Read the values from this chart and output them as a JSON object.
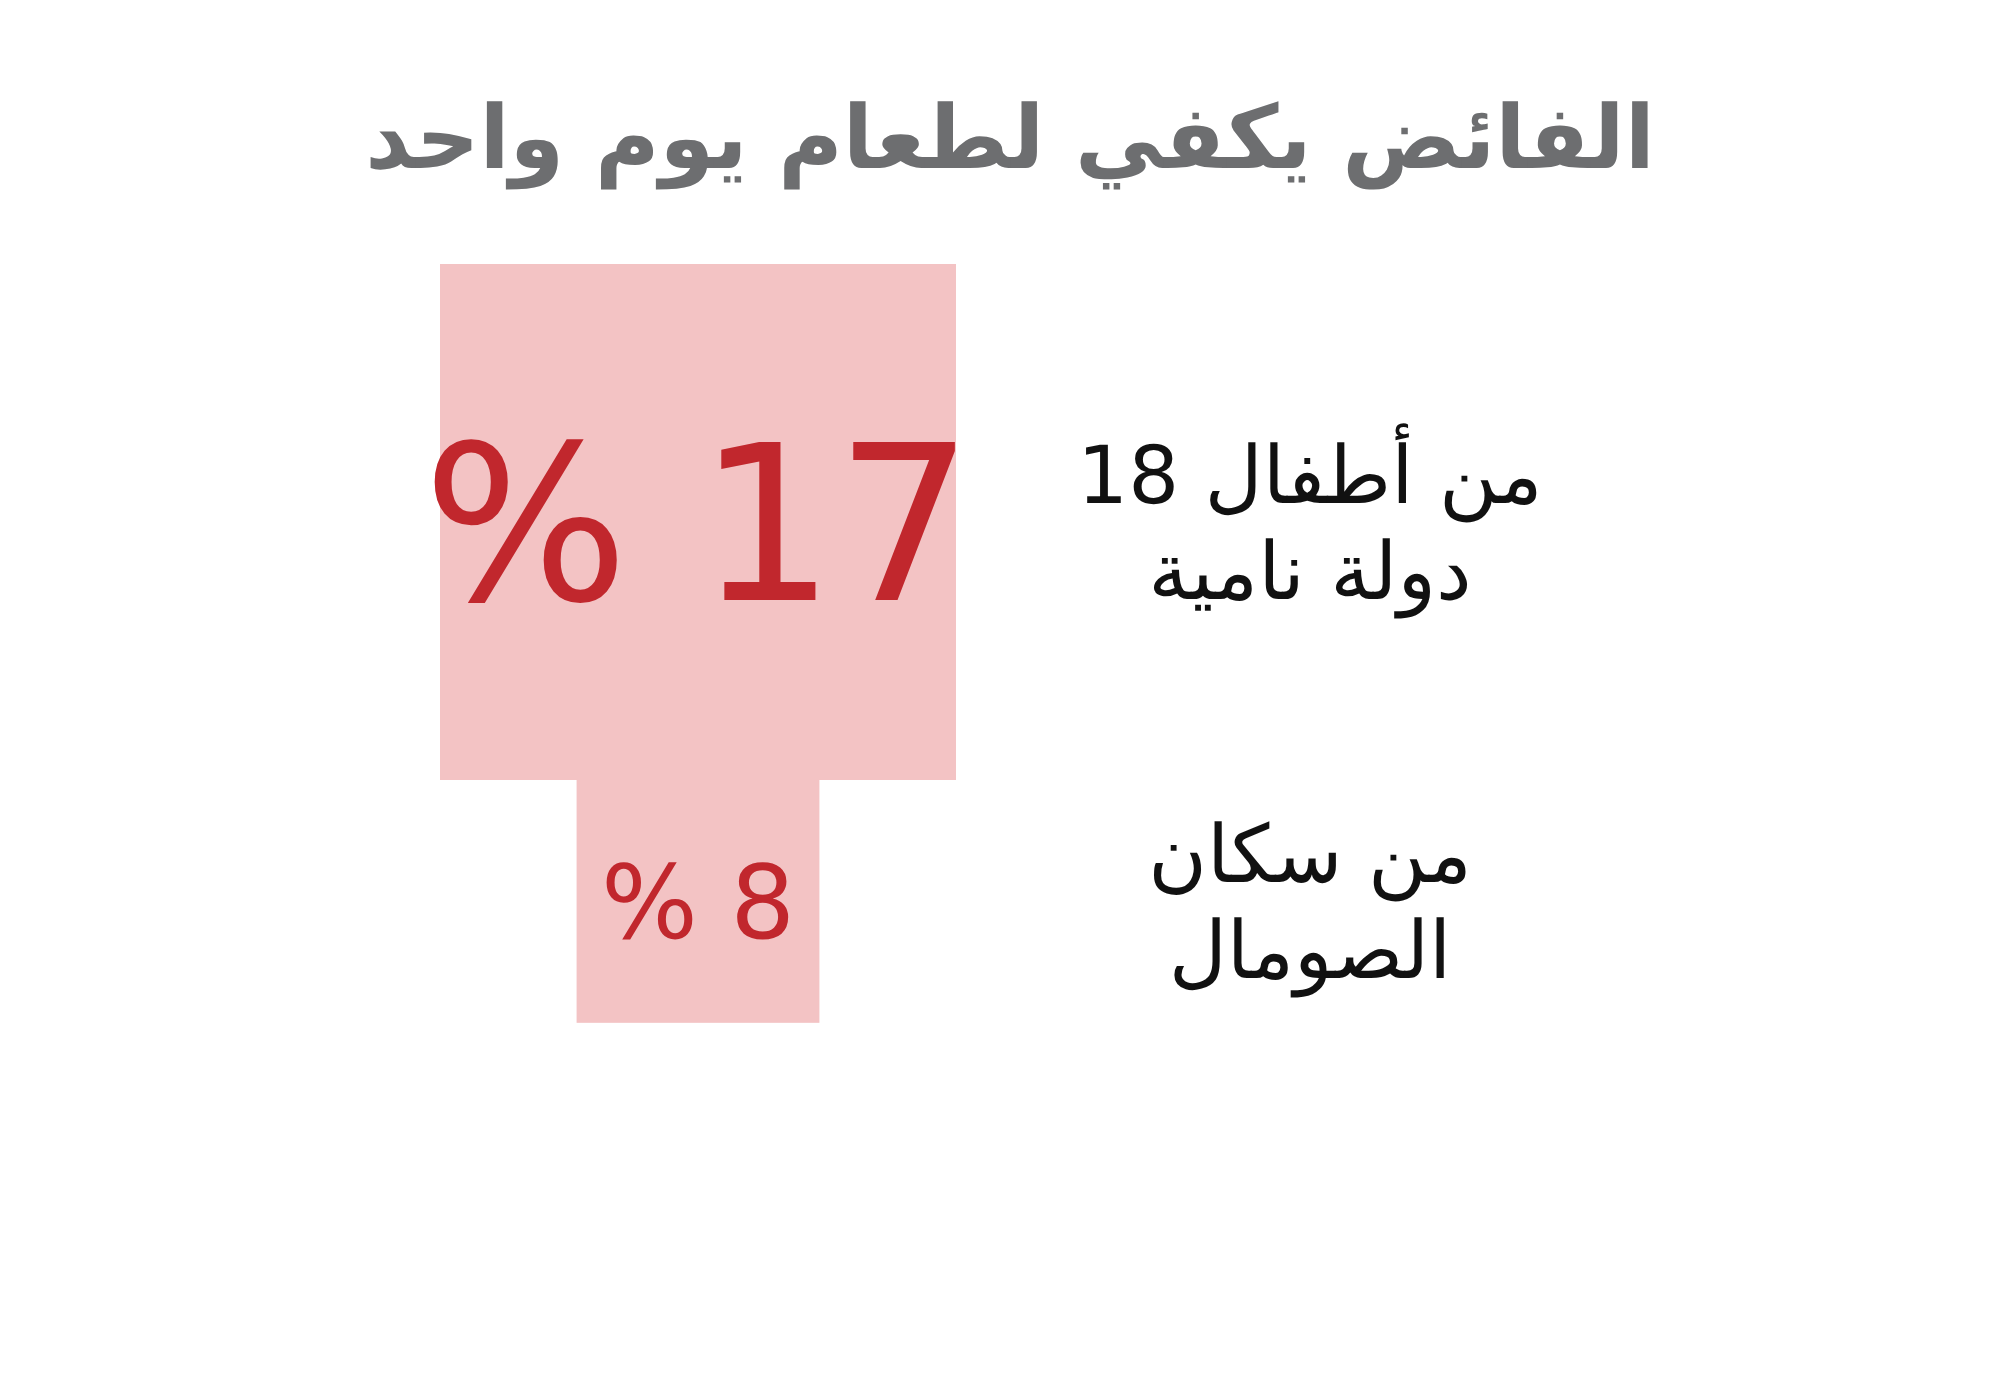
{
  "chart_data": {
    "type": "other",
    "title": "الفائض يكفي لطعام يوم واحد",
    "categories": [
      "من أطفال 18 دولة نامية",
      "من سكان الصومال"
    ],
    "values": [
      17,
      8
    ],
    "value_labels": [
      "17 %",
      "8 %"
    ],
    "color": "#f3c3c4"
  }
}
